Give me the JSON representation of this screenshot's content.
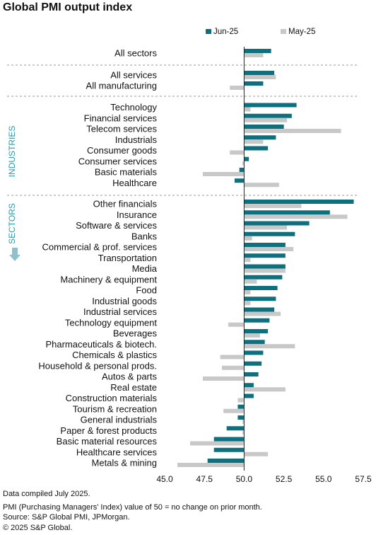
{
  "title": "Global PMI output index",
  "footnotes": [
    "Data compiled July 2025.",
    "PMI (Purchasing Managers' Index) value of 50 = no change on prior month.",
    "Source: S&P Global PMI, JPMorgan.",
    "© 2025 S&P Global."
  ],
  "colors": {
    "jun": "#0e6f7f",
    "may": "#c8c8c8",
    "group_label": "#2a9aae"
  },
  "chart_data": {
    "type": "bar",
    "orientation": "horizontal",
    "xlim": [
      45.0,
      57.5
    ],
    "xticks": [
      "45.0",
      "47.5",
      "50.0",
      "52.5",
      "55.0",
      "57.5"
    ],
    "baseline": 50,
    "legend_position": "top",
    "series": [
      {
        "name": "Jun-25",
        "color": "#0e6f7f"
      },
      {
        "name": "May-25",
        "color": "#c8c8c8"
      }
    ],
    "group_labels": {
      "industries": "INDUSTRIES",
      "sectors": "SECTORS"
    },
    "rows": [
      {
        "label": "All sectors",
        "jun": 51.7,
        "may": 51.2
      },
      {
        "label": "All services",
        "jun": 51.9,
        "may": 52.0
      },
      {
        "label": "All manufacturing",
        "jun": 51.2,
        "may": 49.1
      },
      {
        "label": "Technology",
        "jun": 53.3,
        "may": 50.4
      },
      {
        "label": "Financial services",
        "jun": 53.0,
        "may": 52.7
      },
      {
        "label": "Telecom services",
        "jun": 52.5,
        "may": 56.1
      },
      {
        "label": "Industrials",
        "jun": 52.0,
        "may": 51.2
      },
      {
        "label": "Consumer goods",
        "jun": 51.5,
        "may": 49.1
      },
      {
        "label": "Consumer services",
        "jun": 50.3,
        "may": 49.9
      },
      {
        "label": "Basic materials",
        "jun": 49.7,
        "may": 47.4
      },
      {
        "label": "Healthcare",
        "jun": 49.4,
        "may": 52.2
      },
      {
        "label": "Other financials",
        "jun": 56.9,
        "may": 53.6
      },
      {
        "label": "Insurance",
        "jun": 55.4,
        "may": 56.5
      },
      {
        "label": "Software & services",
        "jun": 54.1,
        "may": 52.7
      },
      {
        "label": "Banks",
        "jun": 53.2,
        "may": 50.5
      },
      {
        "label": "Commercial & prof. services",
        "jun": 52.6,
        "may": 53.1
      },
      {
        "label": "Transportation",
        "jun": 52.6,
        "may": 50.4
      },
      {
        "label": "Media",
        "jun": 52.6,
        "may": 52.6
      },
      {
        "label": "Machinery & equipment",
        "jun": 52.4,
        "may": 50.8
      },
      {
        "label": "Food",
        "jun": 52.1,
        "may": 50.4
      },
      {
        "label": "Industrial goods",
        "jun": 52.0,
        "may": 50.4
      },
      {
        "label": "Industrial services",
        "jun": 51.9,
        "may": 52.3
      },
      {
        "label": "Technology equipment",
        "jun": 51.6,
        "may": 49.0
      },
      {
        "label": "Beverages",
        "jun": 51.5,
        "may": 51.0
      },
      {
        "label": "Pharmaceuticals & biotech.",
        "jun": 51.3,
        "may": 53.2
      },
      {
        "label": "Chemicals & plastics",
        "jun": 51.2,
        "may": 48.5
      },
      {
        "label": "Household & personal prods.",
        "jun": 51.1,
        "may": 48.6
      },
      {
        "label": "Autos & parts",
        "jun": 50.9,
        "may": 47.4
      },
      {
        "label": "Real estate",
        "jun": 50.6,
        "may": 52.6
      },
      {
        "label": "Construction materials",
        "jun": 50.6,
        "may": 49.6
      },
      {
        "label": "Tourism & recreation",
        "jun": 49.6,
        "may": 48.7
      },
      {
        "label": "General industrials",
        "jun": 49.6,
        "may": 49.9
      },
      {
        "label": "Paper & forest products",
        "jun": 48.9,
        "may": 49.9
      },
      {
        "label": "Basic material resources",
        "jun": 48.1,
        "may": 46.6
      },
      {
        "label": "Healthcare services",
        "jun": 48.1,
        "may": 51.5
      },
      {
        "label": "Metals & mining",
        "jun": 47.7,
        "may": 45.8
      }
    ]
  }
}
